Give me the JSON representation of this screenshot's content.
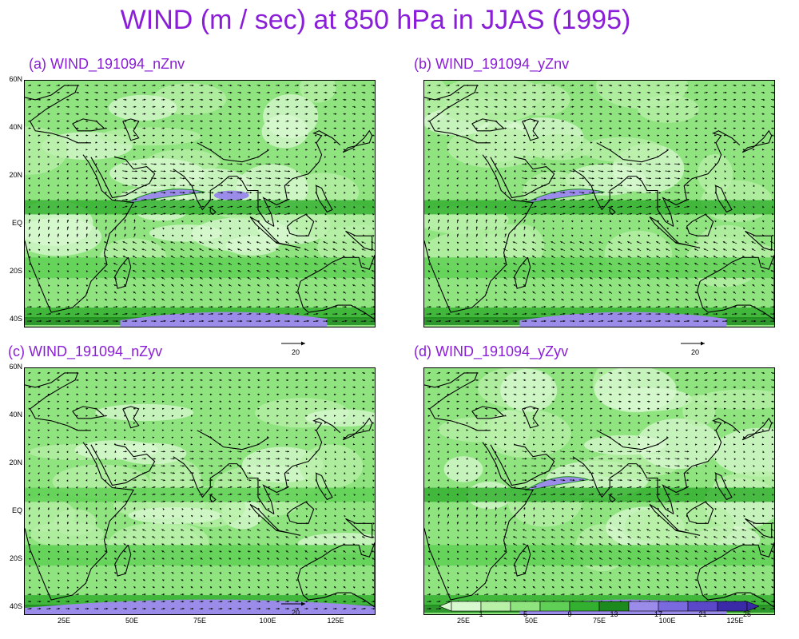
{
  "title": "WIND (m / sec) at 850 hPa in JJAS (1995)",
  "panels": [
    {
      "label": "(a)  WIND_191094_nZnv",
      "jet": "strong",
      "ref_vector": "20"
    },
    {
      "label": "(b)  WIND_191094_yZnv",
      "jet": "strong",
      "ref_vector": "20"
    },
    {
      "label": "(c)  WIND_191094_nZyv",
      "jet": "weak",
      "ref_vector": "20"
    },
    {
      "label": "(d)  WIND_191094_yZyv",
      "jet": "medium",
      "ref_vector": ""
    }
  ],
  "lat_labels": [
    "60N",
    "40N",
    "20N",
    "EQ",
    "20S",
    "40S"
  ],
  "lon_labels": [
    "25E",
    "50E",
    "75E",
    "100E",
    "125E"
  ],
  "colorbar": {
    "labels": [
      "1",
      "5",
      "9",
      "13",
      "17",
      "21",
      "25"
    ],
    "colors": [
      "#d8f8d0",
      "#b8f0a8",
      "#90e480",
      "#5fd055",
      "#34b030",
      "#1d8a1d",
      "#9a8ce8",
      "#7a6ae0",
      "#5a48c8",
      "#3a2aa8"
    ]
  },
  "colors": {
    "title": "#8a1ed8",
    "land_fill": "#b8f0a8",
    "jet_fill": "#9a8ce8"
  }
}
